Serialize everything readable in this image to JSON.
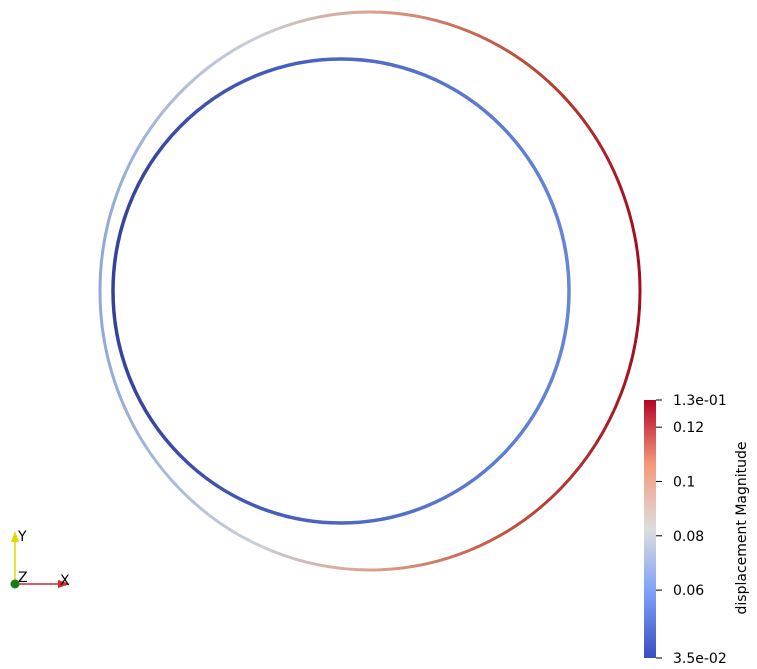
{
  "scalar_bar": {
    "title": "displacement Magnitude",
    "range": [
      0.035,
      0.13
    ],
    "ticks": [
      {
        "value": 0.13,
        "label": "1.3e-01"
      },
      {
        "value": 0.12,
        "label": "0.12"
      },
      {
        "value": 0.1,
        "label": "0.1"
      },
      {
        "value": 0.08,
        "label": "0.08"
      },
      {
        "value": 0.06,
        "label": "0.06"
      },
      {
        "value": 0.035,
        "label": "3.5e-02"
      }
    ],
    "colormap": "cool-to-warm",
    "colormap_stops": [
      {
        "t": 0.0,
        "color": "#3b4cc0"
      },
      {
        "t": 0.25,
        "color": "#7b9ff9"
      },
      {
        "t": 0.5,
        "color": "#dddddd"
      },
      {
        "t": 0.75,
        "color": "#f49a7b"
      },
      {
        "t": 1.0,
        "color": "#b40426"
      }
    ]
  },
  "axes": {
    "x_label": "X",
    "y_label": "Y",
    "z_label": "Z",
    "x_color": "#d62728",
    "y_color": "#e6d600",
    "z_color": "#1a7a1a"
  },
  "rings": {
    "outer": {
      "name": "outer-ring",
      "min_color_side": "left",
      "max_color_side": "right"
    },
    "inner": {
      "name": "inner-ring"
    }
  }
}
